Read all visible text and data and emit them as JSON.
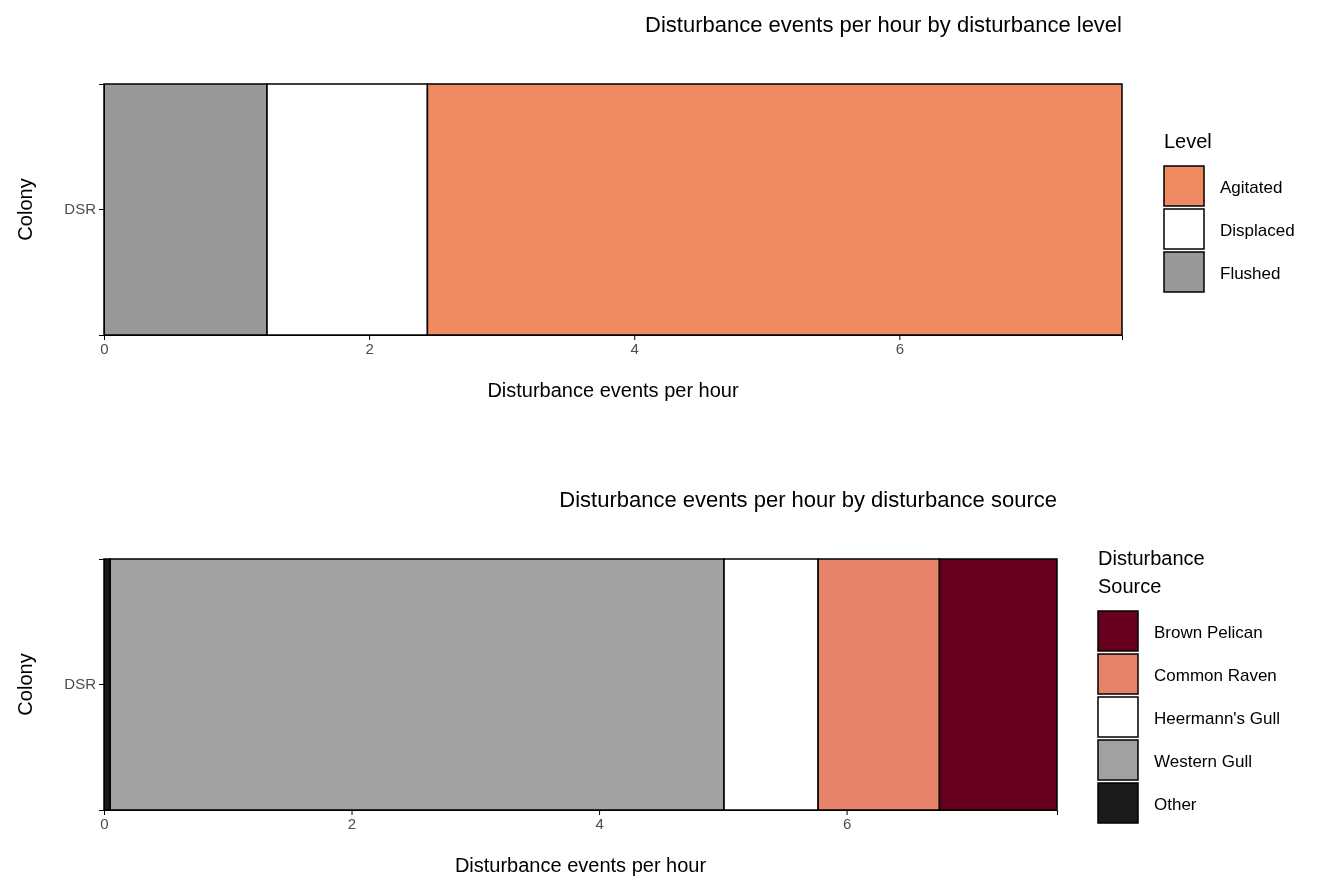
{
  "chart_data": [
    {
      "type": "bar",
      "orientation": "horizontal",
      "stacked": true,
      "title": "Disturbance events per hour by disturbance level",
      "xlabel": "Disturbance events per hour",
      "ylabel": "Colony",
      "legend_title": "Level",
      "legend": "right",
      "categories": [
        "DSR"
      ],
      "xlim": [
        0,
        7.68
      ],
      "xticks": [
        0,
        2,
        4,
        6
      ],
      "series": [
        {
          "name": "Flushed",
          "color": "#999999",
          "values": [
            1.23
          ]
        },
        {
          "name": "Displaced",
          "color": "#ffffff",
          "values": [
            1.21
          ]
        },
        {
          "name": "Agitated",
          "color": "#ef8a62",
          "values": [
            5.24
          ]
        }
      ]
    },
    {
      "type": "bar",
      "orientation": "horizontal",
      "stacked": true,
      "title": "Disturbance events per hour by disturbance source",
      "xlabel": "Disturbance events per hour",
      "ylabel": "Colony",
      "legend_title": "Disturbance Source",
      "legend": "right",
      "categories": [
        "DSR"
      ],
      "xlim": [
        0,
        7.7
      ],
      "xticks": [
        0,
        2,
        4,
        6
      ],
      "series": [
        {
          "name": "Other",
          "color": "#1a1a1a",
          "values": [
            0.05
          ]
        },
        {
          "name": "Western Gull",
          "color": "#a1a1a1",
          "values": [
            4.96
          ]
        },
        {
          "name": "Heermann's Gull",
          "color": "#ffffff",
          "values": [
            0.76
          ]
        },
        {
          "name": "Common Raven",
          "color": "#e6836a",
          "values": [
            0.98
          ]
        },
        {
          "name": "Brown Pelican",
          "color": "#67001f",
          "values": [
            0.95
          ]
        }
      ]
    }
  ]
}
